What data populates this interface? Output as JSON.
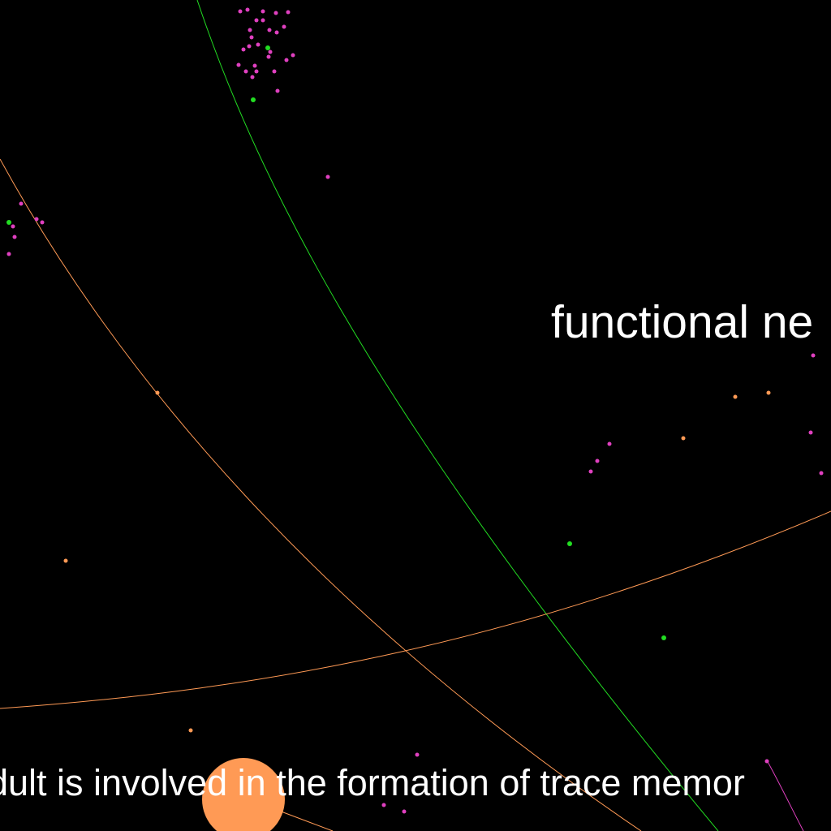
{
  "labels": {
    "top_right": "functional ne",
    "bottom": "dult is involved in the formation of trace memor"
  },
  "colors": {
    "background": "#000000",
    "text": "#ffffff",
    "pink_node": "#e040c0",
    "green_node": "#22dd22",
    "orange_node": "#ff9a55",
    "green_edge": "#22dd22",
    "orange_edge": "#ff9a55",
    "pink_edge": "#e040c0"
  }
}
